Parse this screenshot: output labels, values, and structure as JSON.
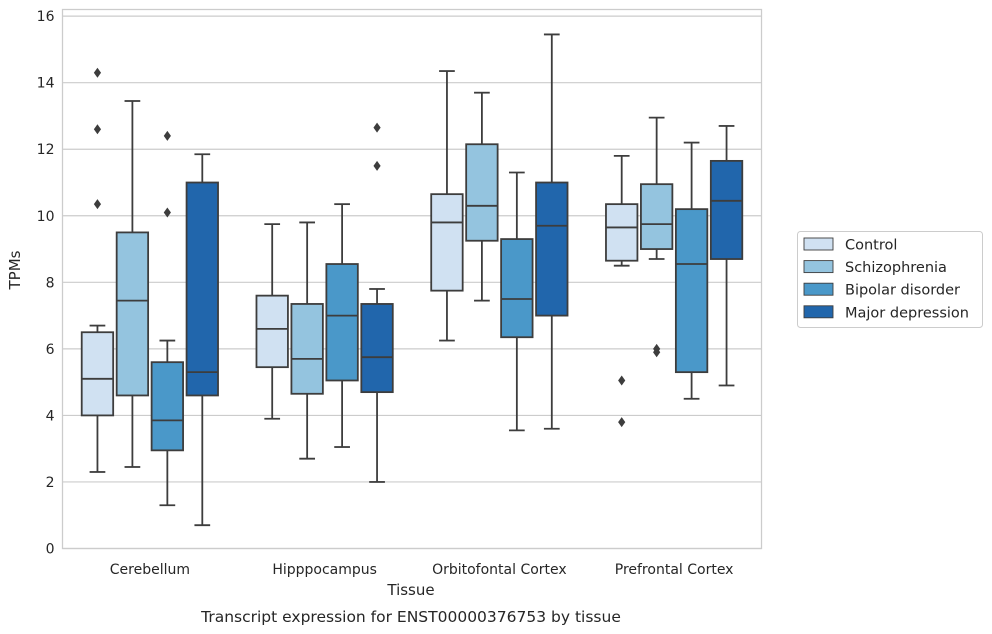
{
  "chart_data": {
    "type": "boxplot",
    "caption": "Transcript expression for ENST00000376753 by tissue",
    "xlabel": "Tissue",
    "ylabel": "TPMs",
    "ylim": [
      0,
      16.2
    ],
    "yticks": [
      0,
      2,
      4,
      6,
      8,
      10,
      12,
      14,
      16
    ],
    "grid": "horizontal",
    "legend_position": "right",
    "categories": [
      "Cerebellum",
      "Hipppocampus",
      "Orbitofontal Cortex",
      "Prefrontal Cortex"
    ],
    "series": [
      {
        "name": "Control",
        "color": "#d0e1f2",
        "boxes": [
          {
            "whislo": 2.3,
            "q1": 4.0,
            "med": 5.1,
            "q3": 6.5,
            "whishi": 6.7,
            "fliers": [
              10.35,
              12.6,
              14.3
            ]
          },
          {
            "whislo": 3.9,
            "q1": 5.45,
            "med": 6.6,
            "q3": 7.6,
            "whishi": 9.75,
            "fliers": []
          },
          {
            "whislo": 6.25,
            "q1": 7.75,
            "med": 9.8,
            "q3": 10.65,
            "whishi": 14.35,
            "fliers": []
          },
          {
            "whislo": 8.5,
            "q1": 8.65,
            "med": 9.65,
            "q3": 10.35,
            "whishi": 11.8,
            "fliers": [
              3.8,
              5.05
            ]
          }
        ]
      },
      {
        "name": "Schizophrenia",
        "color": "#94c4df",
        "boxes": [
          {
            "whislo": 2.45,
            "q1": 4.6,
            "med": 7.45,
            "q3": 9.5,
            "whishi": 13.45,
            "fliers": []
          },
          {
            "whislo": 2.7,
            "q1": 4.65,
            "med": 5.7,
            "q3": 7.35,
            "whishi": 9.8,
            "fliers": []
          },
          {
            "whislo": 7.45,
            "q1": 9.25,
            "med": 10.3,
            "q3": 12.15,
            "whishi": 13.7,
            "fliers": []
          },
          {
            "whislo": 8.7,
            "q1": 9.0,
            "med": 9.75,
            "q3": 10.95,
            "whishi": 12.95,
            "fliers": [
              5.9,
              6.0
            ]
          }
        ]
      },
      {
        "name": "Bipolar disorder",
        "color": "#4a98c9",
        "boxes": [
          {
            "whislo": 1.3,
            "q1": 2.95,
            "med": 3.85,
            "q3": 5.6,
            "whishi": 6.25,
            "fliers": [
              10.1,
              12.4
            ]
          },
          {
            "whislo": 3.05,
            "q1": 5.05,
            "med": 7.0,
            "q3": 8.55,
            "whishi": 10.35,
            "fliers": []
          },
          {
            "whislo": 3.55,
            "q1": 6.35,
            "med": 7.5,
            "q3": 9.3,
            "whishi": 11.3,
            "fliers": []
          },
          {
            "whislo": 4.5,
            "q1": 5.3,
            "med": 8.55,
            "q3": 10.2,
            "whishi": 12.2,
            "fliers": []
          }
        ]
      },
      {
        "name": "Major depression",
        "color": "#2166ac",
        "boxes": [
          {
            "whislo": 0.7,
            "q1": 4.6,
            "med": 5.3,
            "q3": 11.0,
            "whishi": 11.85,
            "fliers": []
          },
          {
            "whislo": 2.0,
            "q1": 4.7,
            "med": 5.75,
            "q3": 7.35,
            "whishi": 7.8,
            "fliers": [
              11.5,
              12.65
            ]
          },
          {
            "whislo": 3.6,
            "q1": 7.0,
            "med": 9.7,
            "q3": 11.0,
            "whishi": 15.45,
            "fliers": []
          },
          {
            "whislo": 4.9,
            "q1": 8.7,
            "med": 10.45,
            "q3": 11.65,
            "whishi": 12.7,
            "fliers": []
          }
        ]
      }
    ]
  }
}
